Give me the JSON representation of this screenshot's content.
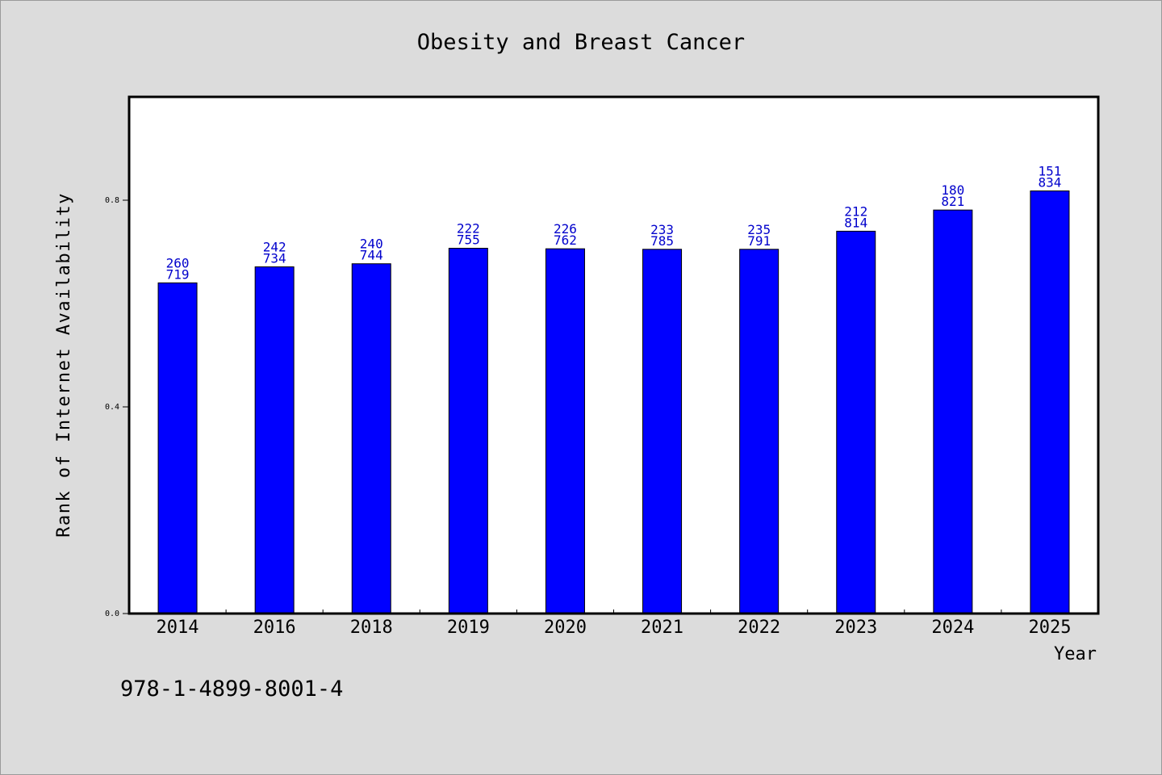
{
  "chart_data": {
    "type": "bar",
    "title": "Obesity and Breast Cancer",
    "xlabel": "Year",
    "ylabel": "Rank of Internet Availability",
    "categories": [
      "2014",
      "2016",
      "2018",
      "2019",
      "2020",
      "2021",
      "2022",
      "2023",
      "2024",
      "2025"
    ],
    "series": [
      {
        "values": [
          0.64,
          0.671,
          0.677,
          0.707,
          0.706,
          0.705,
          0.705,
          0.74,
          0.781,
          0.818
        ],
        "label_top": [
          "260",
          "242",
          "240",
          "222",
          "226",
          "233",
          "235",
          "212",
          "180",
          "151"
        ],
        "label_bottom": [
          "719",
          "734",
          "744",
          "755",
          "762",
          "785",
          "791",
          "814",
          "821",
          "834"
        ]
      }
    ],
    "ylim": [
      0,
      1.0
    ],
    "yticks": [
      "0.0",
      "0.4",
      "0.8"
    ],
    "ytick_values": [
      0.0,
      0.4,
      0.8
    ],
    "grid": false,
    "colors": {
      "bar": "#0000ff",
      "bar_edge": "#000000",
      "data_label": "#0000cc",
      "plot_bg": "#ffffff",
      "figure_bg": "#dcdcdc",
      "text": "#000000"
    }
  },
  "footnote": "978-1-4899-8001-4"
}
